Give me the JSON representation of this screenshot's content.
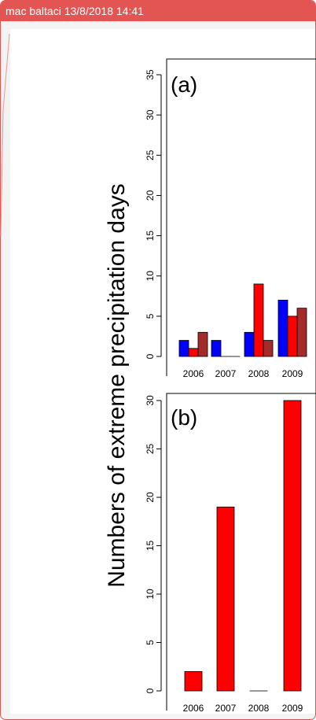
{
  "header": {
    "text": "mac baltaci 13/8/2018 14:41"
  },
  "colors": {
    "header_bar": "#e25553",
    "card_border": "#e25553",
    "series_blue": "#0000ff",
    "series_red": "#ff0000",
    "series_darkred": "#a52a2a"
  },
  "shared_ylabel": "Numbers of extreme precipitation days",
  "chart_data": [
    {
      "type": "bar",
      "panel_label": "(a)",
      "categories": [
        "2006",
        "2007",
        "2008",
        "2009"
      ],
      "series": [
        {
          "values": [
            2,
            2,
            3,
            7
          ]
        },
        {
          "values": [
            1,
            0,
            9,
            5
          ]
        },
        {
          "values": [
            3,
            0,
            2,
            6
          ]
        }
      ],
      "yticks": [
        "0",
        "5",
        "10",
        "15",
        "20",
        "25",
        "30",
        "35"
      ],
      "ylim": [
        0,
        35
      ],
      "grid": false
    },
    {
      "type": "bar",
      "panel_label": "(b)",
      "categories": [
        "2006",
        "2007",
        "2008",
        "2009"
      ],
      "series": [
        {
          "values": [
            2,
            19,
            0,
            30
          ]
        }
      ],
      "yticks": [
        "0",
        "5",
        "10",
        "15",
        "20",
        "25",
        "30"
      ],
      "ylim": [
        0,
        30
      ],
      "grid": false
    }
  ]
}
